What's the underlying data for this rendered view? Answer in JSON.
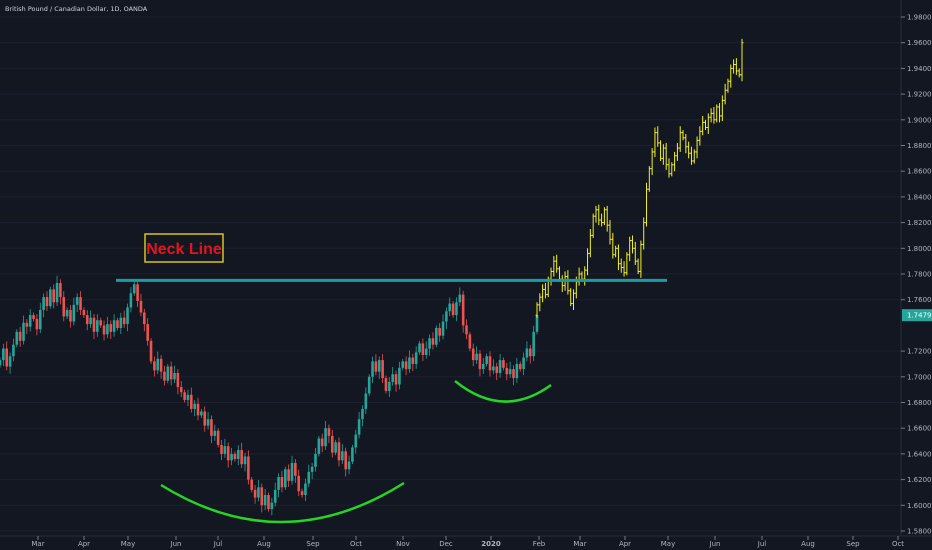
{
  "title": "British Pound / Canadian Dollar, 1D, OANDA",
  "chart_data": {
    "type": "candlestick",
    "symbol": "British Pound / Canadian Dollar",
    "interval": "1D",
    "exchange": "OANDA",
    "ylim": [
      1.57,
      1.99
    ],
    "price_ticks": [
      "1.98000",
      "1.96000",
      "1.94000",
      "1.92000",
      "1.90000",
      "1.88000",
      "1.86000",
      "1.84000",
      "1.82000",
      "1.80000",
      "1.78000",
      "1.76000",
      "1.72000",
      "1.70000",
      "1.68000",
      "1.66000",
      "1.64000",
      "1.62000",
      "1.60000",
      "1.58000"
    ],
    "time_ticks": [
      "Mar",
      "Apr",
      "May",
      "Jun",
      "Jul",
      "Aug",
      "Sep",
      "Oct",
      "Nov",
      "Dec",
      "2020",
      "Feb",
      "Mar",
      "Apr",
      "May",
      "Jun",
      "Jul",
      "Aug",
      "Sep",
      "Oct"
    ],
    "last_price": "1.74796",
    "neck_line": {
      "label": "Neck Line",
      "price": 1.775
    },
    "colors": {
      "up": "#26a69a",
      "down": "#ef5350",
      "projection": "#f2f224",
      "neck": "#1e9aa4",
      "arc": "#27d426",
      "label_border": "#d9c022",
      "label_text": "#e8141b",
      "price_badge": "#26a69a"
    },
    "series": [
      {
        "name": "",
        "style": "candles",
        "close": [
          1.713,
          1.722,
          1.708,
          1.716,
          1.725,
          1.735,
          1.728,
          1.742,
          1.739,
          1.748,
          1.745,
          1.737,
          1.752,
          1.762,
          1.755,
          1.768,
          1.758,
          1.773,
          1.762,
          1.747,
          1.752,
          1.743,
          1.756,
          1.762,
          1.752,
          1.748,
          1.741,
          1.746,
          1.735,
          1.744,
          1.74,
          1.733,
          1.741,
          1.735,
          1.744,
          1.738,
          1.746,
          1.741,
          1.754,
          1.765,
          1.772,
          1.759,
          1.75,
          1.741,
          1.728,
          1.712,
          1.705,
          1.714,
          1.704,
          1.697,
          1.708,
          1.698,
          1.703,
          1.692,
          1.688,
          1.682,
          1.686,
          1.675,
          1.679,
          1.67,
          1.673,
          1.662,
          1.667,
          1.654,
          1.658,
          1.647,
          1.64,
          1.646,
          1.635,
          1.64,
          1.636,
          1.643,
          1.632,
          1.638,
          1.62,
          1.612,
          1.606,
          1.614,
          1.6,
          1.608,
          1.597,
          1.602,
          1.612,
          1.622,
          1.614,
          1.628,
          1.619,
          1.633,
          1.623,
          1.611,
          1.608,
          1.617,
          1.626,
          1.63,
          1.64,
          1.652,
          1.646,
          1.66,
          1.654,
          1.641,
          1.649,
          1.635,
          1.642,
          1.628,
          1.634,
          1.645,
          1.655,
          1.667,
          1.675,
          1.687,
          1.7,
          1.712,
          1.704,
          1.713,
          1.699,
          1.689,
          1.696,
          1.702,
          1.694,
          1.707,
          1.712,
          1.706,
          1.715,
          1.71,
          1.719,
          1.726,
          1.717,
          1.722,
          1.73,
          1.725,
          1.738,
          1.732,
          1.743,
          1.751,
          1.757,
          1.748,
          1.758,
          1.764,
          1.74,
          1.733,
          1.722,
          1.713,
          1.718,
          1.706,
          1.71,
          1.716,
          1.705,
          1.708,
          1.703,
          1.713,
          1.707,
          1.702,
          1.706,
          1.699,
          1.71,
          1.706,
          1.715,
          1.722,
          1.716,
          1.735,
          1.748
        ]
      },
      {
        "name": "",
        "style": "bars",
        "close": [
          1.756,
          1.762,
          1.768,
          1.764,
          1.776,
          1.782,
          1.79,
          1.784,
          1.776,
          1.771,
          1.778,
          1.767,
          1.757,
          1.765,
          1.774,
          1.78,
          1.776,
          1.783,
          1.796,
          1.81,
          1.825,
          1.83,
          1.822,
          1.82,
          1.83,
          1.818,
          1.807,
          1.795,
          1.8,
          1.788,
          1.785,
          1.781,
          1.795,
          1.806,
          1.8,
          1.79,
          1.782,
          1.803,
          1.82,
          1.846,
          1.862,
          1.875,
          1.89,
          1.882,
          1.87,
          1.878,
          1.865,
          1.858,
          1.865,
          1.872,
          1.878,
          1.89,
          1.886,
          1.879,
          1.874,
          1.868,
          1.875,
          1.884,
          1.891,
          1.898,
          1.894,
          1.902,
          1.905,
          1.9,
          1.91,
          1.903,
          1.915,
          1.923,
          1.93,
          1.94,
          1.943,
          1.938,
          1.935,
          1.96
        ]
      }
    ]
  }
}
